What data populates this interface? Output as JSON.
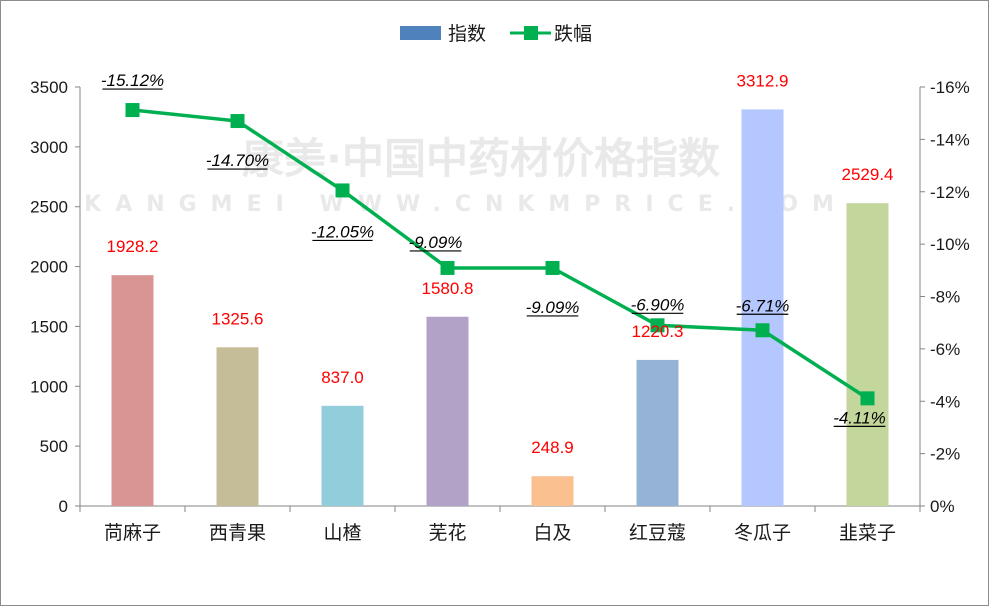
{
  "chart_data": {
    "type": "bar",
    "categories": [
      "苘麻子",
      "西青果",
      "山楂",
      "芜花",
      "白及",
      "红豆蔻",
      "冬瓜子",
      "韭菜子"
    ],
    "series": [
      {
        "name": "指数",
        "type": "bar",
        "axis": "left",
        "values": [
          1928.2,
          1325.6,
          837.0,
          1580.8,
          248.9,
          1220.3,
          3312.9,
          2529.4
        ],
        "labels": [
          "1928.2",
          "1325.6",
          "837.0",
          "1580.8",
          "248.9",
          "1220.3",
          "3312.9",
          "2529.4"
        ],
        "colors": [
          "#d99594",
          "#c4bd97",
          "#92cddc",
          "#b3a2c7",
          "#fac090",
          "#95b3d7",
          "#b4c7fe",
          "#c3d69b"
        ],
        "label_color": "#ff0000"
      },
      {
        "name": "跌幅",
        "type": "line",
        "axis": "right",
        "values": [
          -15.12,
          -14.7,
          -12.05,
          -9.09,
          -9.09,
          -6.9,
          -6.71,
          -4.11
        ],
        "labels": [
          "-15.12%",
          "-14.70%",
          "-12.05%",
          "-9.09%",
          "-9.09%",
          "-6.90%",
          "-6.71%",
          "-4.11%"
        ],
        "color": "#00b050"
      }
    ],
    "y_left": {
      "min": 0,
      "max": 3500,
      "ticks": [
        "0",
        "500",
        "1000",
        "1500",
        "2000",
        "2500",
        "3000",
        "3500"
      ]
    },
    "y_right": {
      "min": 0,
      "max": -16,
      "reversed": true,
      "ticks": [
        "0%",
        "-2%",
        "-4%",
        "-6%",
        "-8%",
        "-10%",
        "-12%",
        "-14%",
        "-16%"
      ]
    },
    "legend_position": "top-center",
    "grid": false
  },
  "watermark": {
    "line1": "康美·中国中药材价格指数",
    "line2": "KANGMEI WWW.CNKMPRICE.COM"
  }
}
